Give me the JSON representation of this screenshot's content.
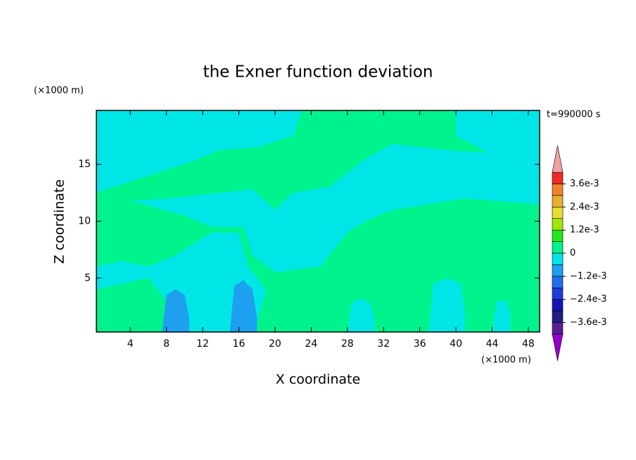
{
  "chart_data": {
    "type": "contour",
    "title": "the Exner function deviation",
    "x_label": "X coordinate",
    "y_label": "Z coordinate",
    "x_unit": "(×1000 m)",
    "y_unit": "(×1000 m)",
    "time_label": "t=990000 s",
    "xlim": [
      0.25,
      49.25
    ],
    "ylim": [
      0.25,
      19.75
    ],
    "xticks": [
      4,
      8,
      12,
      16,
      20,
      24,
      28,
      32,
      36,
      40,
      44,
      48
    ],
    "yticks": [
      5,
      10,
      15
    ],
    "base_value": 0.0003,
    "regions": [
      {
        "value": -0.0003,
        "x": [
          0.25,
          23,
          22,
          18,
          14,
          11,
          8,
          4,
          0.25
        ],
        "z": [
          19.75,
          19.75,
          17.5,
          16.5,
          16.3,
          15.3,
          14.5,
          13.5,
          12.5
        ]
      },
      {
        "value": -0.0003,
        "x": [
          4,
          10,
          13,
          16.5,
          17.5,
          20,
          25,
          28,
          30,
          33,
          37,
          41,
          49.25,
          49.25,
          44,
          40,
          33,
          30,
          26,
          22,
          20,
          17.5,
          14,
          8
        ],
        "z": [
          11.8,
          10.5,
          9.5,
          9.5,
          7,
          5.5,
          6,
          9,
          10,
          11,
          11.5,
          12,
          11.5,
          16,
          16,
          16.2,
          16.8,
          15.5,
          13,
          12.5,
          11,
          12.8,
          12.5,
          12
        ]
      },
      {
        "value": -0.0003,
        "x": [
          40,
          49.25,
          49.25,
          44,
          42,
          40
        ],
        "z": [
          19.75,
          19.75,
          15,
          15.8,
          16.7,
          17.5
        ]
      },
      {
        "value": -0.0003,
        "x": [
          0.25,
          3,
          6,
          9,
          13,
          16,
          17,
          19,
          18,
          16,
          10,
          8,
          6,
          3,
          0.25
        ],
        "z": [
          6,
          6.5,
          6,
          7,
          9,
          9,
          6,
          4,
          1,
          0.25,
          0.25,
          3,
          5,
          4.5,
          4
        ]
      },
      {
        "value": -0.0003,
        "x": [
          28,
          28.5,
          29.5,
          30.5,
          31,
          31
        ],
        "z": [
          0.25,
          2.8,
          3.2,
          2.8,
          1.5,
          0.25
        ]
      },
      {
        "value": -0.0003,
        "x": [
          37,
          37.5,
          39,
          40.5,
          41,
          41
        ],
        "z": [
          0.25,
          4.5,
          5,
          4.5,
          2,
          0.25
        ]
      },
      {
        "value": -0.0003,
        "x": [
          44,
          44.5,
          45.5,
          46,
          46
        ],
        "z": [
          0.25,
          3,
          3,
          2,
          0.25
        ]
      },
      {
        "value": -0.0009,
        "x": [
          7.5,
          8,
          9,
          10,
          10.5,
          10.5
        ],
        "z": [
          0.25,
          3.5,
          4,
          3.5,
          1.5,
          0.25
        ]
      },
      {
        "value": -0.0009,
        "x": [
          15,
          15.5,
          16.5,
          17.5,
          18,
          18
        ],
        "z": [
          0.25,
          4.3,
          4.8,
          4,
          1.5,
          0.25
        ]
      }
    ],
    "colorbar": {
      "levels": [
        -0.0042,
        -0.0036,
        -0.003,
        -0.0024,
        -0.0018,
        -0.0012,
        -0.0006,
        0,
        0.0006,
        0.0012,
        0.0018,
        0.0024,
        0.003,
        0.0036,
        0.0042
      ],
      "colors": [
        "#5a1e96",
        "#1e1e82",
        "#1414b4",
        "#1e3cdc",
        "#1e6ef0",
        "#1ea0f0",
        "#00e6e6",
        "#00f28c",
        "#22e61e",
        "#a0e600",
        "#e6dc32",
        "#e6af2d",
        "#f08228",
        "#f02828"
      ],
      "under_color": "#9600c8",
      "over_color": "#f0a0a0",
      "ticks": [
        {
          "value": 0.0036,
          "label": "3.6e-3"
        },
        {
          "value": 0.0024,
          "label": "2.4e-3"
        },
        {
          "value": 0.0012,
          "label": "1.2e-3"
        },
        0,
        {
          "value": -0.0012,
          "label": "−1.2e-3"
        },
        {
          "value": -0.0024,
          "label": "−2.4e-3"
        },
        {
          "value": -0.0036,
          "label": "−3.6e-3"
        }
      ]
    }
  }
}
